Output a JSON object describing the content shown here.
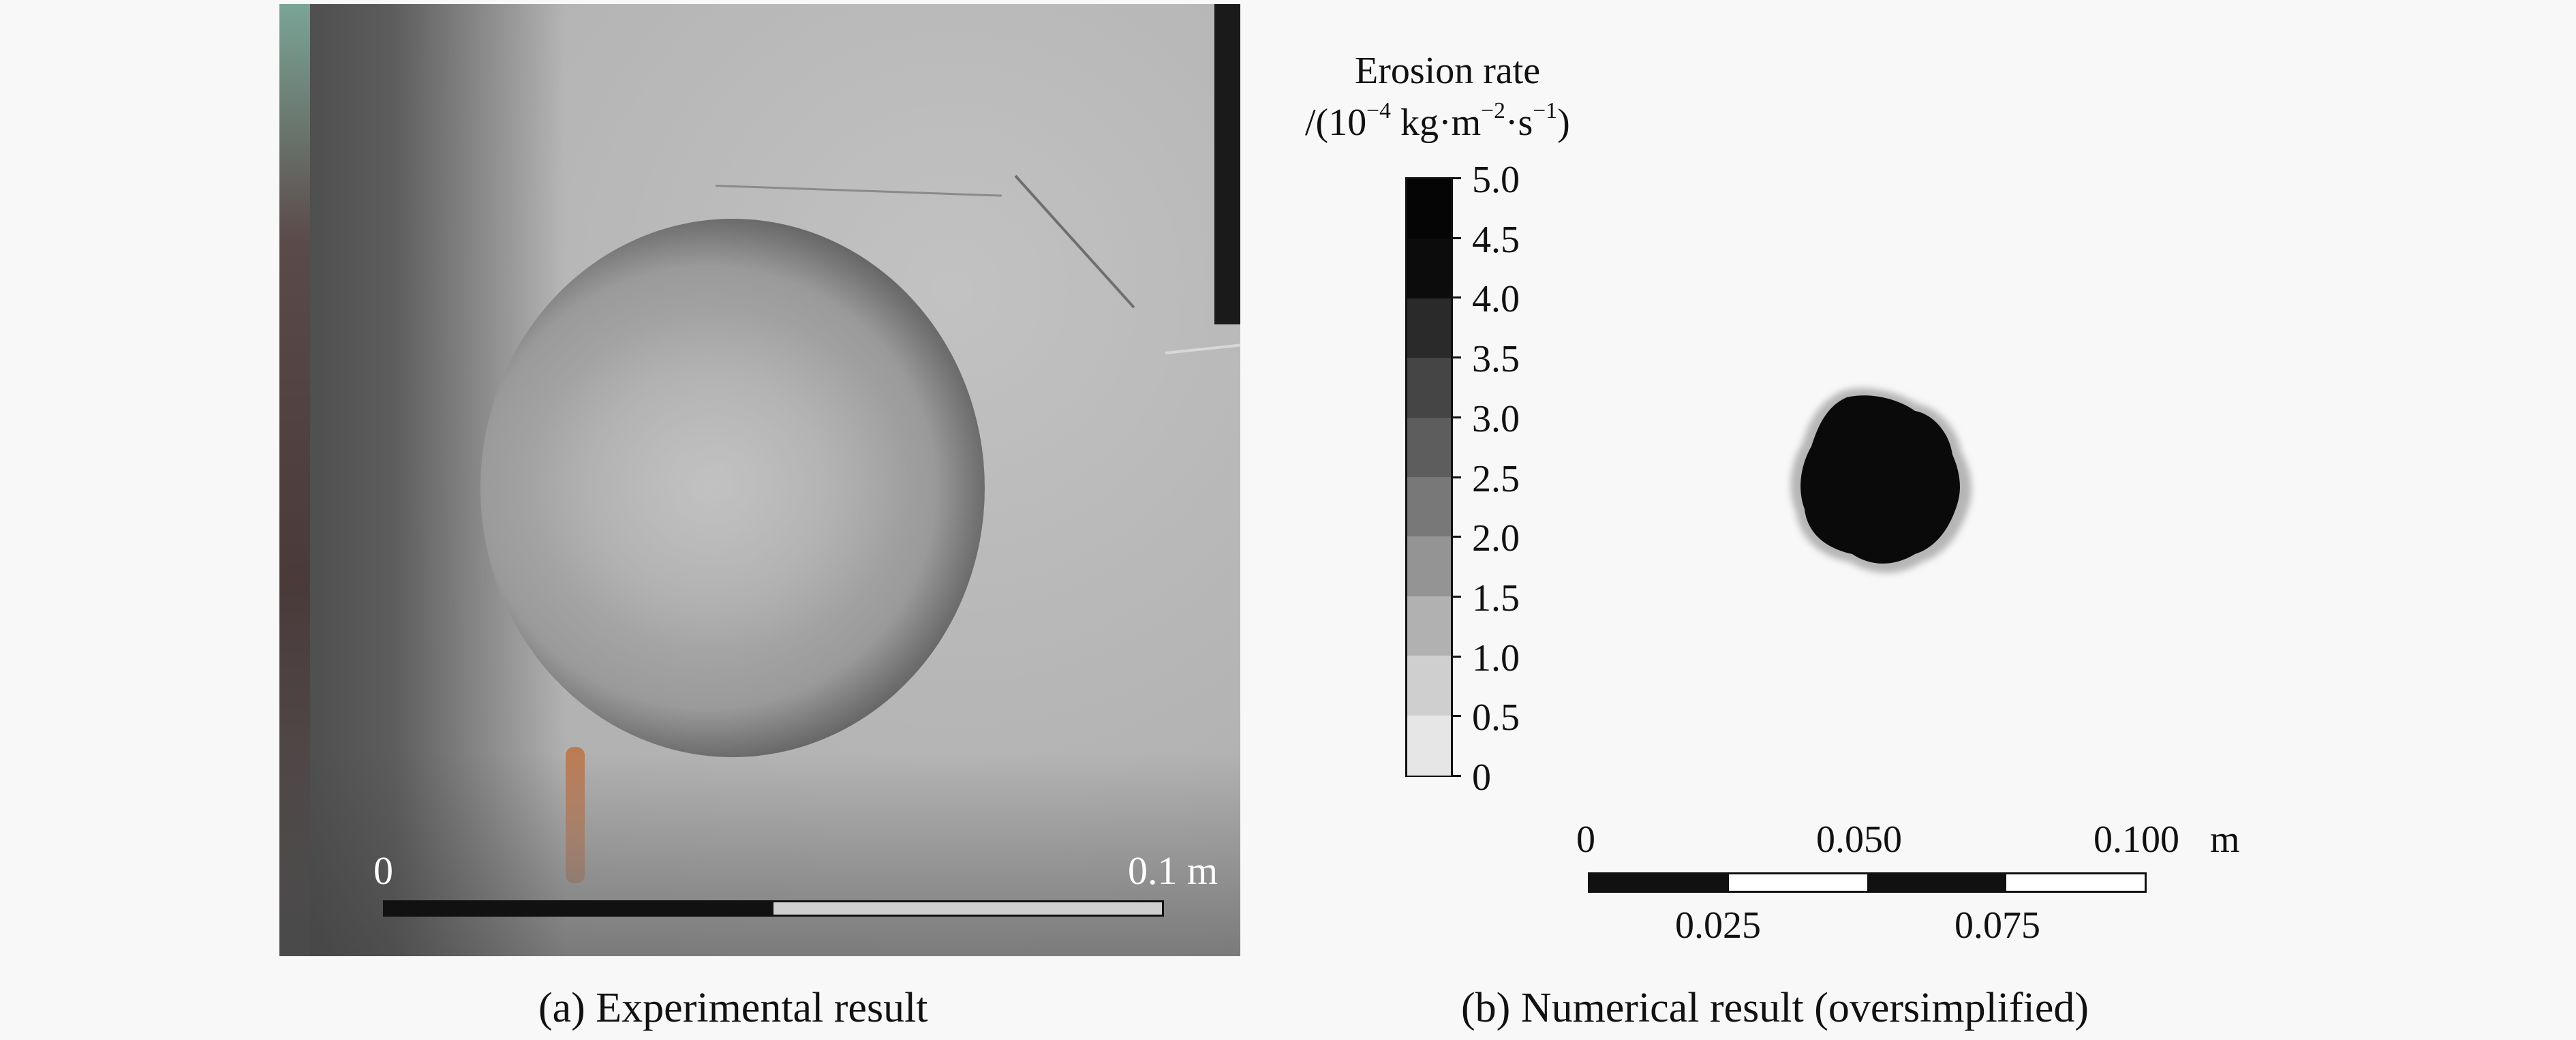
{
  "panel_a": {
    "caption": "(a) Experimental result",
    "scale_bar": {
      "start_label": "0",
      "end_label": "0.1 m"
    }
  },
  "panel_b": {
    "caption": "(b) Numerical result (oversimplified)",
    "legend": {
      "title_line1": "Erosion rate",
      "title_line2_prefix": "/(10",
      "title_line2_exp1": "−4",
      "title_line2_mid": " kg·m",
      "title_line2_exp2": "−2",
      "title_line2_mid2": "·s",
      "title_line2_exp3": "−1",
      "title_line2_suffix": ")",
      "ticks": [
        "5.0",
        "4.5",
        "4.0",
        "3.5",
        "3.0",
        "2.5",
        "2.0",
        "1.5",
        "1.0",
        "0.5",
        "0"
      ],
      "colors": [
        "#050505",
        "#0c0c0c",
        "#2a2a2a",
        "#454545",
        "#5d5d5d",
        "#787878",
        "#949494",
        "#b1b1b1",
        "#cfcfcf",
        "#e6e6e6",
        "#ffffff"
      ]
    },
    "scale_bar": {
      "top_labels": [
        "0",
        "0.050",
        "0.100"
      ],
      "unit": "m",
      "bottom_labels": [
        "0.025",
        "0.075"
      ]
    }
  }
}
